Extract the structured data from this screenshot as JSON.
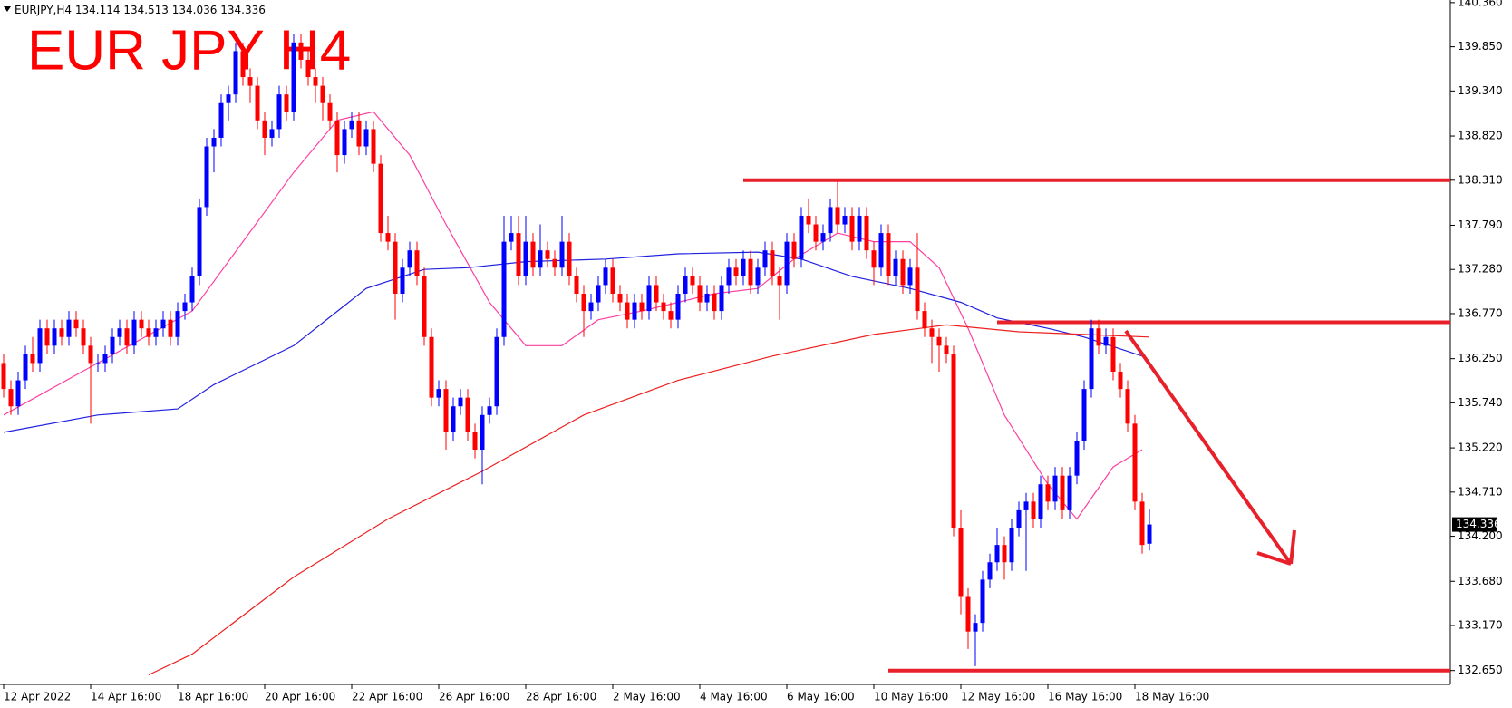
{
  "chart_data": {
    "type": "candlestick",
    "symbol": "EURJPY,H4",
    "title": "EUR JPY H4",
    "up_color": "#0000ff",
    "down_color": "#ff0000",
    "ylim": [
      132.49,
      140.39
    ],
    "yticks": [
      {
        "value": 140.36,
        "label": "140.360"
      },
      {
        "value": 139.85,
        "label": "139.850"
      },
      {
        "value": 139.34,
        "label": "139.340"
      },
      {
        "value": 138.82,
        "label": "138.820"
      },
      {
        "value": 138.31,
        "label": "138.310"
      },
      {
        "value": 137.79,
        "label": "137.790"
      },
      {
        "value": 137.28,
        "label": "137.280"
      },
      {
        "value": 136.77,
        "label": "136.770"
      },
      {
        "value": 136.25,
        "label": "136.250"
      },
      {
        "value": 135.74,
        "label": "135.740"
      },
      {
        "value": 135.22,
        "label": "135.220"
      },
      {
        "value": 134.71,
        "label": "134.710"
      },
      {
        "value": 134.2,
        "label": "134.200"
      },
      {
        "value": 133.68,
        "label": "133.680"
      },
      {
        "value": 133.17,
        "label": "133.170"
      },
      {
        "value": 132.65,
        "label": "132.650"
      }
    ],
    "xticks": [
      {
        "value": 0,
        "label": "12 Apr 2022"
      },
      {
        "value": 12,
        "label": "14 Apr 16:00"
      },
      {
        "value": 24,
        "label": "18 Apr 16:00"
      },
      {
        "value": 36,
        "label": "20 Apr 16:00"
      },
      {
        "value": 48,
        "label": "22 Apr 16:00"
      },
      {
        "value": 60,
        "label": "26 Apr 16:00"
      },
      {
        "value": 72,
        "label": "28 Apr 16:00"
      },
      {
        "value": 84,
        "label": "2 May 16:00"
      },
      {
        "value": 96,
        "label": "4 May 16:00"
      },
      {
        "value": 108,
        "label": "6 May 16:00"
      },
      {
        "value": 120,
        "label": "10 May 16:00"
      },
      {
        "value": 132,
        "label": "12 May 16:00"
      },
      {
        "value": 144,
        "label": "16 May 16:00"
      },
      {
        "value": 156,
        "label": "18 May 16:00"
      }
    ],
    "ohlc": [
      [
        136.2,
        136.3,
        135.8,
        135.9
      ],
      [
        135.9,
        136.0,
        135.6,
        135.7
      ],
      [
        135.7,
        136.1,
        135.6,
        136.0
      ],
      [
        136.0,
        136.4,
        135.9,
        136.3
      ],
      [
        136.3,
        136.5,
        136.1,
        136.2
      ],
      [
        136.2,
        136.7,
        136.1,
        136.6
      ],
      [
        136.6,
        136.7,
        136.3,
        136.4
      ],
      [
        136.4,
        136.7,
        136.3,
        136.6
      ],
      [
        136.6,
        136.7,
        136.4,
        136.5
      ],
      [
        136.5,
        136.8,
        136.4,
        136.7
      ],
      [
        136.7,
        136.8,
        136.5,
        136.6
      ],
      [
        136.6,
        136.7,
        136.3,
        136.4
      ],
      [
        136.4,
        136.5,
        135.5,
        136.2
      ],
      [
        136.2,
        136.3,
        136.1,
        136.2
      ],
      [
        136.2,
        136.4,
        136.1,
        136.3
      ],
      [
        136.3,
        136.6,
        136.2,
        136.5
      ],
      [
        136.5,
        136.7,
        136.4,
        136.6
      ],
      [
        136.6,
        136.7,
        136.3,
        136.4
      ],
      [
        136.4,
        136.8,
        136.3,
        136.7
      ],
      [
        136.7,
        136.8,
        136.5,
        136.6
      ],
      [
        136.6,
        136.7,
        136.4,
        136.5
      ],
      [
        136.5,
        136.7,
        136.4,
        136.6
      ],
      [
        136.6,
        136.8,
        136.5,
        136.7
      ],
      [
        136.7,
        136.8,
        136.4,
        136.5
      ],
      [
        136.5,
        136.9,
        136.4,
        136.8
      ],
      [
        136.8,
        137.0,
        136.7,
        136.9
      ],
      [
        136.9,
        137.3,
        136.8,
        137.2
      ],
      [
        137.2,
        138.1,
        137.1,
        138.0
      ],
      [
        138.0,
        138.8,
        137.9,
        138.7
      ],
      [
        138.7,
        138.9,
        138.4,
        138.8
      ],
      [
        138.8,
        139.3,
        138.7,
        139.2
      ],
      [
        139.2,
        139.4,
        139.0,
        139.3
      ],
      [
        139.3,
        139.9,
        139.2,
        139.8
      ],
      [
        139.8,
        139.9,
        139.4,
        139.5
      ],
      [
        139.5,
        139.6,
        139.2,
        139.4
      ],
      [
        139.4,
        139.5,
        138.9,
        139.0
      ],
      [
        139.0,
        139.1,
        138.6,
        138.8
      ],
      [
        138.8,
        139.0,
        138.7,
        138.9
      ],
      [
        138.9,
        139.4,
        138.8,
        139.3
      ],
      [
        139.3,
        139.4,
        139.0,
        139.1
      ],
      [
        139.1,
        140.0,
        139.0,
        139.9
      ],
      [
        139.9,
        140.0,
        139.6,
        139.7
      ],
      [
        139.7,
        139.8,
        139.4,
        139.5
      ],
      [
        139.5,
        139.6,
        139.2,
        139.4
      ],
      [
        139.4,
        139.5,
        139.0,
        139.2
      ],
      [
        139.2,
        139.3,
        138.9,
        139.0
      ],
      [
        139.0,
        139.1,
        138.4,
        138.6
      ],
      [
        138.6,
        139.0,
        138.5,
        138.9
      ],
      [
        138.9,
        139.1,
        138.8,
        139.0
      ],
      [
        139.0,
        139.1,
        138.6,
        138.7
      ],
      [
        138.7,
        139.0,
        138.6,
        138.9
      ],
      [
        138.9,
        139.0,
        138.4,
        138.5
      ],
      [
        138.5,
        138.6,
        137.6,
        137.7
      ],
      [
        137.7,
        137.9,
        137.5,
        137.6
      ],
      [
        137.6,
        137.7,
        136.7,
        137.0
      ],
      [
        137.0,
        137.4,
        136.9,
        137.3
      ],
      [
        137.3,
        137.6,
        137.2,
        137.5
      ],
      [
        137.5,
        137.6,
        137.1,
        137.2
      ],
      [
        137.2,
        137.3,
        136.4,
        136.5
      ],
      [
        136.5,
        136.6,
        135.7,
        135.8
      ],
      [
        135.8,
        136.0,
        135.7,
        135.9
      ],
      [
        135.9,
        136.0,
        135.2,
        135.4
      ],
      [
        135.4,
        135.8,
        135.3,
        135.7
      ],
      [
        135.7,
        135.9,
        135.6,
        135.8
      ],
      [
        135.8,
        135.9,
        135.3,
        135.4
      ],
      [
        135.4,
        135.5,
        135.1,
        135.2
      ],
      [
        135.2,
        135.7,
        134.8,
        135.6
      ],
      [
        135.6,
        135.8,
        135.5,
        135.7
      ],
      [
        135.7,
        136.6,
        135.6,
        136.5
      ],
      [
        136.5,
        137.9,
        136.4,
        137.6
      ],
      [
        137.6,
        137.9,
        137.5,
        137.7
      ],
      [
        137.7,
        137.9,
        137.1,
        137.2
      ],
      [
        137.2,
        137.9,
        137.1,
        137.6
      ],
      [
        137.6,
        137.7,
        137.2,
        137.3
      ],
      [
        137.3,
        137.8,
        137.2,
        137.5
      ],
      [
        137.5,
        137.6,
        137.3,
        137.4
      ],
      [
        137.4,
        137.5,
        137.2,
        137.3
      ],
      [
        137.3,
        137.9,
        137.2,
        137.6
      ],
      [
        137.6,
        137.7,
        137.1,
        137.2
      ],
      [
        137.2,
        137.3,
        136.9,
        137.0
      ],
      [
        137.0,
        137.1,
        136.5,
        136.8
      ],
      [
        136.8,
        137.0,
        136.7,
        136.9
      ],
      [
        136.9,
        137.2,
        136.8,
        137.1
      ],
      [
        137.1,
        137.4,
        137.0,
        137.3
      ],
      [
        137.3,
        137.4,
        136.9,
        137.0
      ],
      [
        137.0,
        137.1,
        136.8,
        136.9
      ],
      [
        136.9,
        137.0,
        136.6,
        136.7
      ],
      [
        136.7,
        137.0,
        136.6,
        136.9
      ],
      [
        136.9,
        137.0,
        136.7,
        136.8
      ],
      [
        136.8,
        137.2,
        136.7,
        137.1
      ],
      [
        137.1,
        137.2,
        136.8,
        136.9
      ],
      [
        136.9,
        137.0,
        136.7,
        136.8
      ],
      [
        136.8,
        136.9,
        136.6,
        136.7
      ],
      [
        136.7,
        137.1,
        136.6,
        137.0
      ],
      [
        137.0,
        137.3,
        136.9,
        137.2
      ],
      [
        137.2,
        137.3,
        137.0,
        137.1
      ],
      [
        137.1,
        137.2,
        136.8,
        136.9
      ],
      [
        136.9,
        137.1,
        136.8,
        137.0
      ],
      [
        137.0,
        137.1,
        136.7,
        136.8
      ],
      [
        136.8,
        137.2,
        136.7,
        137.1
      ],
      [
        137.1,
        137.4,
        137.0,
        137.3
      ],
      [
        137.3,
        137.4,
        137.1,
        137.2
      ],
      [
        137.2,
        137.5,
        137.1,
        137.4
      ],
      [
        137.4,
        137.5,
        137.0,
        137.1
      ],
      [
        137.1,
        137.4,
        137.0,
        137.3
      ],
      [
        137.3,
        137.6,
        137.2,
        137.5
      ],
      [
        137.5,
        137.6,
        137.1,
        137.2
      ],
      [
        137.2,
        137.3,
        136.7,
        137.1
      ],
      [
        137.1,
        137.7,
        137.0,
        137.6
      ],
      [
        137.6,
        137.7,
        137.3,
        137.4
      ],
      [
        137.4,
        138.0,
        137.3,
        137.9
      ],
      [
        137.9,
        138.1,
        137.7,
        137.8
      ],
      [
        137.8,
        137.9,
        137.5,
        137.6
      ],
      [
        137.6,
        137.8,
        137.5,
        137.7
      ],
      [
        137.7,
        138.1,
        137.6,
        138.0
      ],
      [
        138.0,
        138.3,
        137.7,
        137.8
      ],
      [
        137.8,
        138.0,
        137.7,
        137.9
      ],
      [
        137.9,
        138.0,
        137.5,
        137.6
      ],
      [
        137.6,
        138.0,
        137.5,
        137.9
      ],
      [
        137.9,
        138.0,
        137.4,
        137.5
      ],
      [
        137.5,
        137.6,
        137.1,
        137.3
      ],
      [
        137.3,
        137.8,
        137.2,
        137.7
      ],
      [
        137.7,
        137.8,
        137.1,
        137.2
      ],
      [
        137.2,
        137.5,
        137.1,
        137.4
      ],
      [
        137.4,
        137.5,
        137.0,
        137.1
      ],
      [
        137.1,
        137.4,
        137.0,
        137.3
      ],
      [
        137.3,
        137.7,
        136.7,
        136.8
      ],
      [
        136.8,
        136.9,
        136.5,
        136.6
      ],
      [
        136.6,
        136.7,
        136.2,
        136.5
      ],
      [
        136.5,
        136.6,
        136.1,
        136.4
      ],
      [
        136.4,
        136.5,
        136.2,
        136.3
      ],
      [
        136.3,
        136.4,
        134.2,
        134.3
      ],
      [
        134.3,
        134.5,
        133.3,
        133.5
      ],
      [
        133.5,
        133.6,
        132.9,
        133.1
      ],
      [
        133.1,
        133.3,
        132.7,
        133.2
      ],
      [
        133.2,
        133.8,
        133.1,
        133.7
      ],
      [
        133.7,
        134.0,
        133.6,
        133.9
      ],
      [
        133.9,
        134.3,
        133.8,
        134.1
      ],
      [
        134.1,
        134.2,
        133.7,
        133.9
      ],
      [
        133.9,
        134.4,
        133.8,
        134.3
      ],
      [
        134.3,
        134.6,
        134.2,
        134.5
      ],
      [
        134.5,
        134.7,
        133.8,
        134.6
      ],
      [
        134.6,
        134.7,
        134.3,
        134.4
      ],
      [
        134.4,
        134.9,
        134.3,
        134.8
      ],
      [
        134.8,
        134.9,
        134.5,
        134.6
      ],
      [
        134.6,
        135.0,
        134.5,
        134.9
      ],
      [
        134.9,
        135.0,
        134.4,
        134.5
      ],
      [
        134.5,
        135.0,
        134.4,
        134.9
      ],
      [
        134.9,
        135.4,
        134.8,
        135.3
      ],
      [
        135.3,
        136.0,
        135.2,
        135.9
      ],
      [
        135.9,
        136.7,
        135.8,
        136.6
      ],
      [
        136.6,
        136.7,
        136.3,
        136.4
      ],
      [
        136.4,
        136.6,
        136.3,
        136.5
      ],
      [
        136.5,
        136.6,
        136.0,
        136.1
      ],
      [
        136.1,
        136.2,
        135.8,
        135.9
      ],
      [
        135.9,
        136.0,
        135.4,
        135.5
      ],
      [
        135.5,
        135.6,
        134.5,
        134.6
      ],
      [
        134.6,
        134.7,
        134.0,
        134.1
      ],
      [
        134.114,
        134.513,
        134.036,
        134.336
      ]
    ],
    "lines": [
      {
        "color": "#ff3fa0",
        "x": [
          0,
          13,
          26,
          33,
          40,
          46,
          51,
          56,
          61,
          67,
          72,
          77,
          82,
          88,
          93,
          98,
          104,
          109,
          115,
          120,
          125,
          129,
          133,
          138,
          144,
          148,
          153,
          157
        ],
        "values": [
          135.6,
          136.2,
          136.8,
          137.6,
          138.4,
          139.0,
          139.1,
          138.6,
          137.8,
          136.9,
          136.4,
          136.4,
          136.7,
          136.8,
          136.9,
          137.0,
          137.06,
          137.4,
          137.7,
          137.6,
          137.6,
          137.3,
          136.6,
          135.6,
          134.8,
          134.4,
          135.0,
          135.2
        ]
      },
      {
        "color": "#2020e0",
        "x": [
          0,
          13,
          24,
          29,
          40,
          50,
          58,
          64,
          72,
          83,
          93,
          104,
          110,
          117,
          125,
          132,
          137,
          144,
          149,
          157
        ],
        "values": [
          135.4,
          135.6,
          135.67,
          135.95,
          136.4,
          137.06,
          137.28,
          137.3,
          137.37,
          137.4,
          137.46,
          137.48,
          137.4,
          137.2,
          137.06,
          136.9,
          136.72,
          136.6,
          136.5,
          136.28
        ]
      },
      {
        "color": "#ee2020",
        "x": [
          20,
          26,
          40,
          53,
          66,
          80,
          93,
          106,
          120,
          130,
          140,
          149,
          158
        ],
        "values": [
          132.6,
          132.84,
          133.73,
          134.4,
          134.95,
          135.6,
          136.0,
          136.28,
          136.53,
          136.64,
          136.56,
          136.53,
          136.5
        ]
      }
    ],
    "levels": {
      "color": "#e8202a",
      "values": [
        138.31,
        136.67,
        132.65
      ],
      "from_x": [
        102,
        137,
        122
      ]
    }
  }
}
